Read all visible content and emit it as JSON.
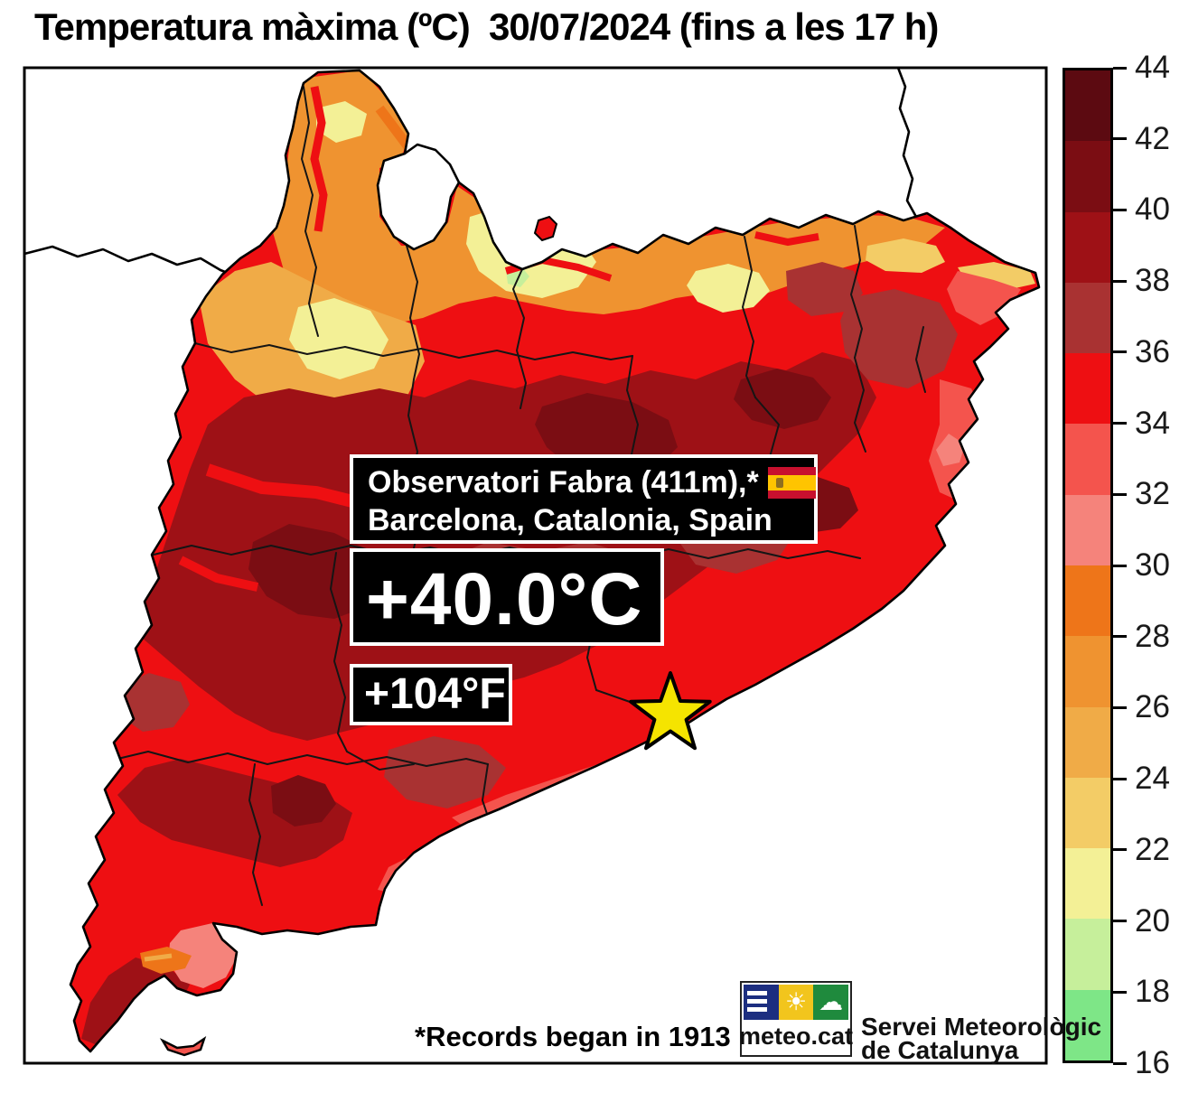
{
  "title": "Temperatura màxima (ºC)  30/07/2024 (fins a les 17 h)",
  "colorbar": {
    "unit": "ºC",
    "min": 16,
    "max": 44,
    "step": 2,
    "ticks": [
      "44",
      "42",
      "40",
      "38",
      "36",
      "34",
      "32",
      "30",
      "28",
      "26",
      "24",
      "22",
      "20",
      "18",
      "16"
    ],
    "segments": [
      {
        "range": "42–44",
        "color": "#5c0a11"
      },
      {
        "range": "40–42",
        "color": "#7b0d13"
      },
      {
        "range": "38–40",
        "color": "#9e1116"
      },
      {
        "range": "36–38",
        "color": "#a93232"
      },
      {
        "range": "34–36",
        "color": "#ee0f12"
      },
      {
        "range": "32–34",
        "color": "#f4544d"
      },
      {
        "range": "30–32",
        "color": "#f5837b"
      },
      {
        "range": "28–30",
        "color": "#ee7519"
      },
      {
        "range": "26–28",
        "color": "#ef9330"
      },
      {
        "range": "24–26",
        "color": "#f0ab47"
      },
      {
        "range": "22–24",
        "color": "#f3cc66"
      },
      {
        "range": "20–22",
        "color": "#f3f096"
      },
      {
        "range": "18–20",
        "color": "#c6ef9b"
      },
      {
        "range": "16–18",
        "color": "#7ee687"
      }
    ]
  },
  "callout": {
    "location_line1": "Observatori Fabra (411m),*",
    "location_line2": "Barcelona, Catalonia, Spain",
    "flag": "spain-flag",
    "flag_colors": {
      "red": "#c8102e",
      "yellow": "#ffc400"
    },
    "temperature_c": "+40.0°C",
    "temperature_f": "+104°F"
  },
  "map": {
    "region": "Catalonia",
    "star_color": "#f5e400",
    "sea_color": "#ffffff",
    "outside_region_color": "#ffffff"
  },
  "footnote": "*Records began in 1913",
  "branding": {
    "logo_text": "meteo.cat",
    "org_name_line1": "Servei Meteorològic",
    "org_name_line2": "de Catalunya",
    "logo_colors": {
      "navy": "#1c2e80",
      "gold": "#f2c51d",
      "green": "#1f8a3d"
    }
  },
  "chart_data": {
    "type": "heatmap",
    "subtype": "temperature-map",
    "title": "Temperatura màxima (ºC)  30/07/2024 (fins a les 17 h)",
    "region": "Catalonia, Spain",
    "scale": {
      "min": 16,
      "max": 44,
      "step": 2,
      "unit": "ºC"
    },
    "highlight_point": {
      "station": "Observatori Fabra (411m)",
      "place": "Barcelona, Catalonia, Spain",
      "value_c": 40.0,
      "value_f": 104,
      "note": "*Records began in 1913"
    },
    "legend_position": "right"
  }
}
